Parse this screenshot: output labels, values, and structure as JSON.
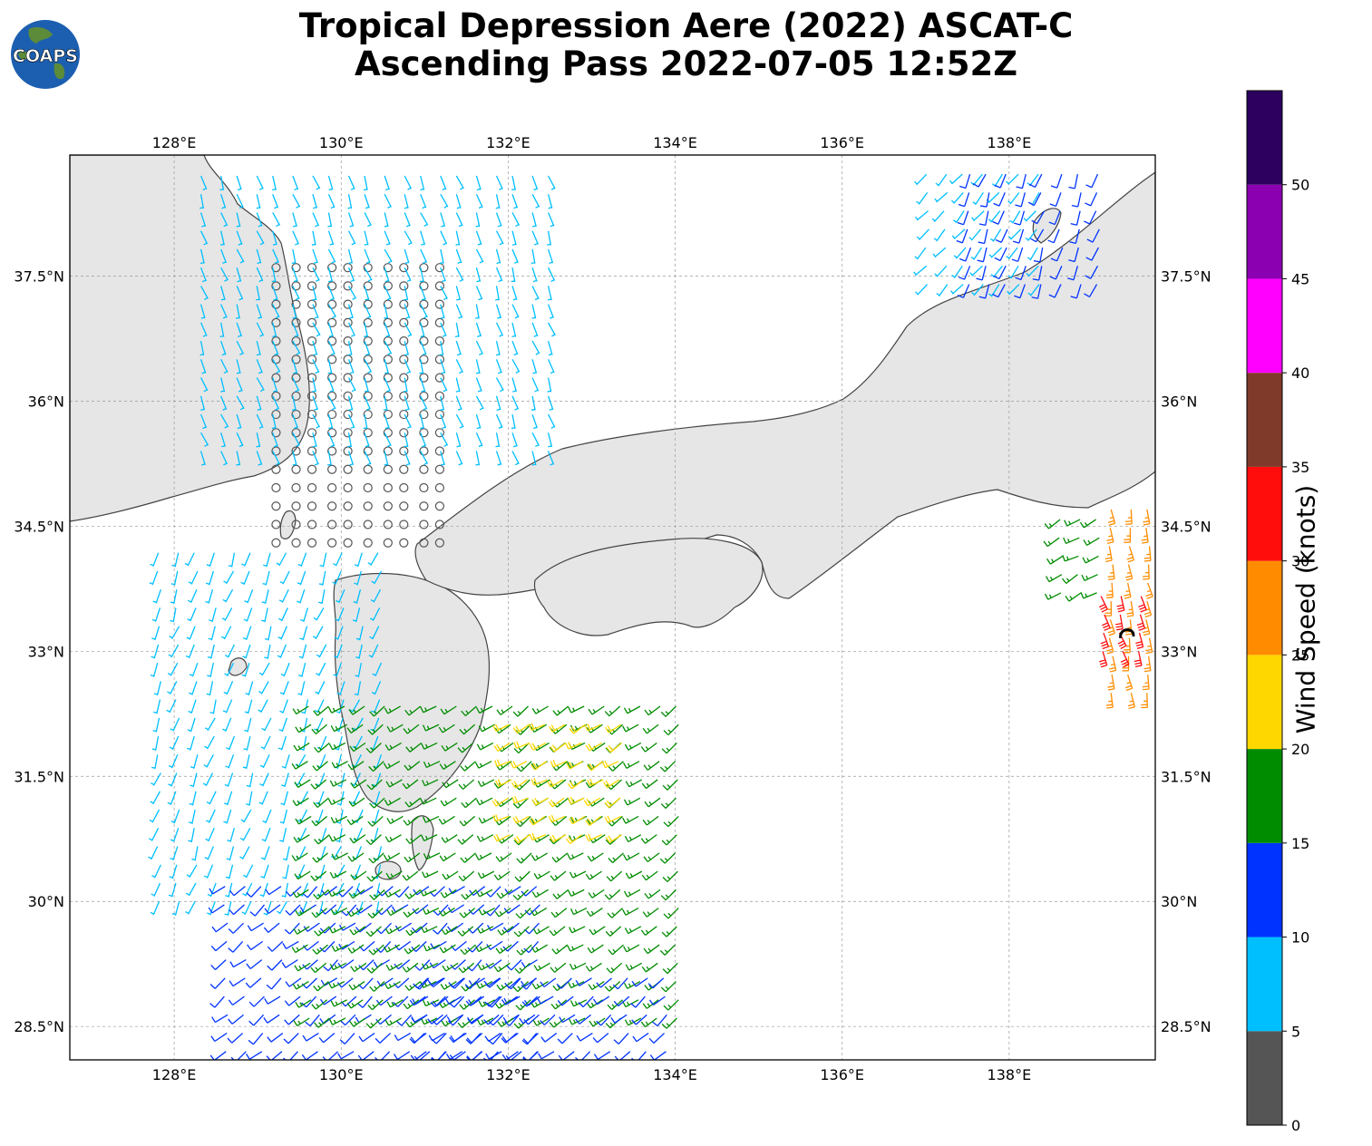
{
  "title": {
    "line1": "Tropical Depression Aere (2022) ASCAT-C",
    "line2": "Ascending Pass 2022-07-05 12:52Z"
  },
  "logo": {
    "text": "COAPS",
    "ocean_color": "#1c5fb0",
    "land_color": "#5c8b3a"
  },
  "map": {
    "lon_range": [
      126.75,
      139.75
    ],
    "lat_range": [
      28.1,
      38.95
    ],
    "lon_ticks": [
      {
        "value": 128,
        "label": "128°E"
      },
      {
        "value": 130,
        "label": "130°E"
      },
      {
        "value": 132,
        "label": "132°E"
      },
      {
        "value": 134,
        "label": "134°E"
      },
      {
        "value": 136,
        "label": "136°E"
      },
      {
        "value": 138,
        "label": "138°E"
      }
    ],
    "lat_ticks": [
      {
        "value": 28.5,
        "label": "28.5°N"
      },
      {
        "value": 30,
        "label": "30°N"
      },
      {
        "value": 31.5,
        "label": "31.5°N"
      },
      {
        "value": 33,
        "label": "33°N"
      },
      {
        "value": 34.5,
        "label": "34.5°N"
      },
      {
        "value": 36,
        "label": "36°N"
      },
      {
        "value": 37.5,
        "label": "37.5°N"
      }
    ],
    "grid": true,
    "land_color": "#e6e6e6",
    "coast_color": "#444444",
    "storm_center": {
      "lon": 139.4,
      "lat": 33.2
    }
  },
  "colorbar": {
    "label": "Wind Speed (knots)",
    "bins": [
      {
        "min": 0,
        "max": 5,
        "color": "#555555"
      },
      {
        "min": 5,
        "max": 10,
        "color": "#00bfff"
      },
      {
        "min": 10,
        "max": 15,
        "color": "#0033ff"
      },
      {
        "min": 15,
        "max": 20,
        "color": "#008c00"
      },
      {
        "min": 20,
        "max": 25,
        "color": "#ffd700"
      },
      {
        "min": 25,
        "max": 30,
        "color": "#ff8c00"
      },
      {
        "min": 30,
        "max": 35,
        "color": "#ff0d0d"
      },
      {
        "min": 35,
        "max": 40,
        "color": "#7f3a2a"
      },
      {
        "min": 40,
        "max": 45,
        "color": "#ff00ff"
      },
      {
        "min": 45,
        "max": 50,
        "color": "#8b00b0"
      },
      {
        "min": 50,
        "max": 55,
        "color": "#2d0060"
      }
    ],
    "tick_labels": [
      "0",
      "5",
      "10",
      "15",
      "20",
      "25",
      "30",
      "35",
      "40",
      "45",
      "50"
    ]
  },
  "wind_regions": [
    {
      "name": "calm-yellow-sea",
      "lon": [
        129.2,
        131.3
      ],
      "lat": [
        34.3,
        37.8
      ],
      "speed": 3,
      "dir": 180
    },
    {
      "name": "cyan-north",
      "lon": [
        128.3,
        132.6
      ],
      "lat": [
        35.4,
        38.9
      ],
      "speed": 8,
      "dir": 160
    },
    {
      "name": "cyan-west",
      "lon": [
        127.8,
        130.5
      ],
      "lat": [
        30.0,
        34.2
      ],
      "speed": 7,
      "dir": 200
    },
    {
      "name": "blue-southwest",
      "lon": [
        128.6,
        132.5
      ],
      "lat": [
        28.2,
        30.2
      ],
      "speed": 12,
      "dir": 230
    },
    {
      "name": "green-south",
      "lon": [
        129.6,
        134.0
      ],
      "lat": [
        28.6,
        32.4
      ],
      "speed": 17,
      "dir": 235
    },
    {
      "name": "yellow-south",
      "lon": [
        132.0,
        133.4
      ],
      "lat": [
        30.8,
        32.2
      ],
      "speed": 22,
      "dir": 240
    },
    {
      "name": "blue-lower",
      "lon": [
        131.0,
        134.0
      ],
      "lat": [
        28.2,
        29.2
      ],
      "speed": 12,
      "dir": 230
    },
    {
      "name": "cyan-northeast",
      "lon": [
        137.0,
        138.5
      ],
      "lat": [
        37.4,
        38.9
      ],
      "speed": 8,
      "dir": 220
    },
    {
      "name": "blue-northeast",
      "lon": [
        137.5,
        139.2
      ],
      "lat": [
        37.4,
        38.9
      ],
      "speed": 12,
      "dir": 200
    },
    {
      "name": "green-east",
      "lon": [
        138.6,
        139.2
      ],
      "lat": [
        33.7,
        34.6
      ],
      "speed": 17,
      "dir": 240
    },
    {
      "name": "orange-east",
      "lon": [
        139.2,
        139.7
      ],
      "lat": [
        32.5,
        34.9
      ],
      "speed": 27,
      "dir": 170
    },
    {
      "name": "red-east",
      "lon": [
        139.1,
        139.6
      ],
      "lat": [
        33.0,
        33.7
      ],
      "speed": 32,
      "dir": 160
    }
  ]
}
